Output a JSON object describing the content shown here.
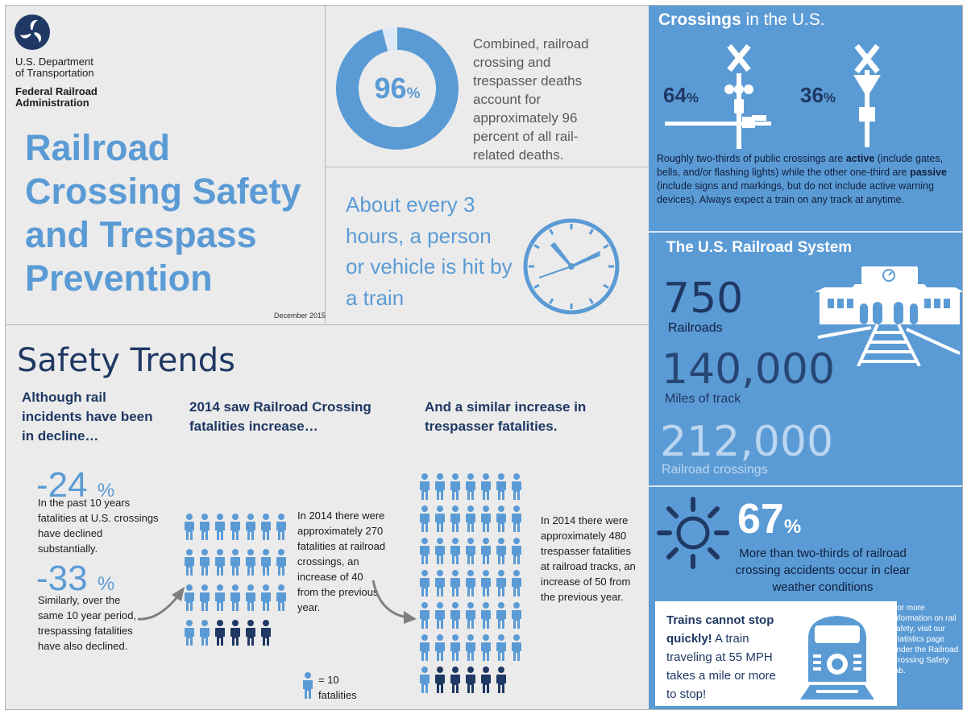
{
  "header": {
    "dept_line1": "U.S. Department",
    "dept_line2": "of Transportation",
    "agency_line1": "Federal Railroad",
    "agency_line2": "Administration",
    "title_lines": [
      "Railroad",
      "Crossing Safety",
      "and Trespass",
      "Prevention"
    ],
    "date": "December 2015"
  },
  "deaths": {
    "value": "96",
    "unit": "%",
    "fraction": 0.96,
    "text": "Combined, railroad crossing and trespasser deaths account for approximately 96 percent of all rail-related deaths."
  },
  "clock_text": "About every 3 hours, a person or vehicle is hit by a train",
  "safety_trends": {
    "title": "Safety Trends",
    "col1_head": "Although rail incidents have been in decline…",
    "stat1_value": "-24",
    "stat1_unit": "%",
    "stat1_text": "In the past 10 years fatalities at U.S. crossings have declined substantially.",
    "stat2_value": "-33",
    "stat2_unit": "%",
    "stat2_text": "Similarly, over the same 10 year period, trespassing fatalities have also declined.",
    "col2_head": "2014 saw Railroad Crossing fatalities increase…",
    "col2_text": "In 2014 there were approximately 270 fatalities at railroad crossings, an increase of 40 from the previous year.",
    "col3_head": "And a similar increase in trespasser fatalities.",
    "col3_text": "In 2014 there were approximately 480 trespasser fatalities at railroad tracks, an increase of 50 from the previous year.",
    "legend_text": "= 10 fatalities"
  },
  "crossings": {
    "title_bold": "Crossings",
    "title_rest": " in the U.S.",
    "active_value": "64",
    "passive_value": "36",
    "unit": "%",
    "body_1": "Roughly two-thirds of public crossings are ",
    "body_active": "active",
    "body_2": " (include gates, bells, and/or flashing lights) while the other one-third are ",
    "body_passive": "passive",
    "body_3": " (include signs and markings, but do not include active warning devices). Always expect a train on any track at anytime."
  },
  "system": {
    "title": "The U.S. Railroad System",
    "railroads_value": "750",
    "railroads_label": "Railroads",
    "miles_value": "140,000",
    "miles_label": "Miles of track",
    "crossings_value": "212,000",
    "crossings_label": "Railroad crossings"
  },
  "weather": {
    "value": "67",
    "unit": "%",
    "text": "More than two-thirds of railroad crossing accidents occur in clear weather conditions"
  },
  "trains": {
    "bold": "Trains cannot stop quickly!",
    "rest": " A train traveling at 55 MPH takes a mile or more to stop!"
  },
  "more_info": "For more information on rail safety, visit our Statistics page under the Railroad Crossing Safety tab.",
  "colors": {
    "light_blue": "#5b9bd5",
    "dark_navy": "#1f3864",
    "background": "#ebebeb"
  }
}
